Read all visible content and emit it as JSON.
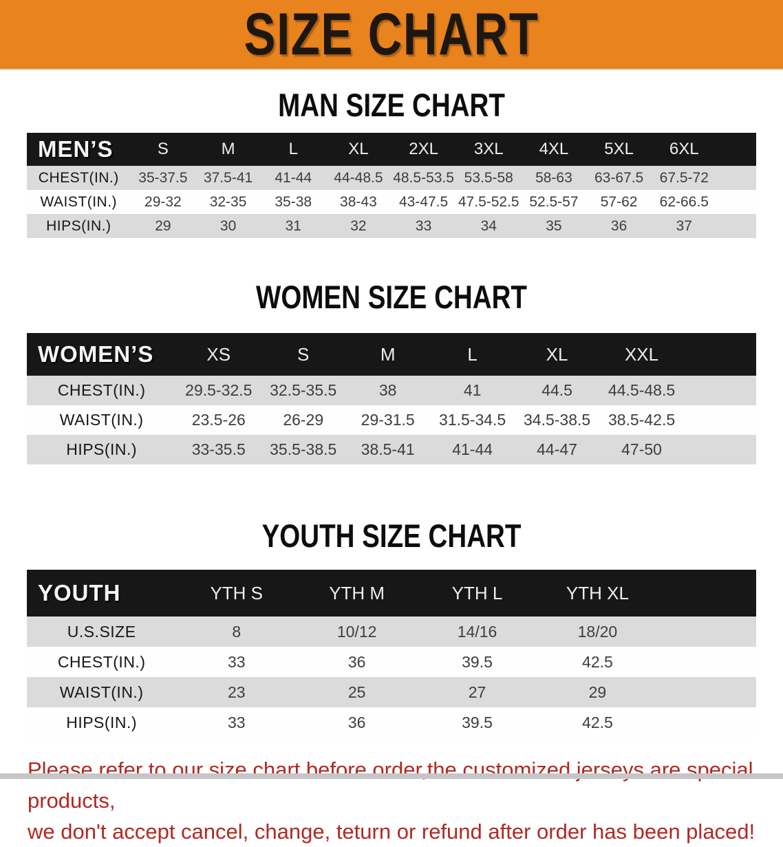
{
  "banner": {
    "title": "SIZE CHART",
    "bg_color": "#E8831E",
    "text_color": "#1d1712"
  },
  "tables": {
    "men": {
      "heading": "MAN SIZE CHART",
      "header_label": "MEN’S",
      "columns": [
        "S",
        "M",
        "L",
        "XL",
        "2XL",
        "3XL",
        "4XL",
        "5XL",
        "6XL"
      ],
      "rows": [
        {
          "label": "CHEST(IN.)",
          "values": [
            "35-37.5",
            "37.5-41",
            "41-44",
            "44-48.5",
            "48.5-53.5",
            "53.5-58",
            "58-63",
            "63-67.5",
            "67.5-72"
          ]
        },
        {
          "label": "WAIST(IN.)",
          "values": [
            "29-32",
            "32-35",
            "35-38",
            "38-43",
            "43-47.5",
            "47.5-52.5",
            "52.5-57",
            "57-62",
            "62-66.5"
          ]
        },
        {
          "label": "HIPS(IN.)",
          "values": [
            "29",
            "30",
            "31",
            "32",
            "33",
            "34",
            "35",
            "36",
            "37"
          ]
        }
      ]
    },
    "women": {
      "heading": "WOMEN SIZE CHART",
      "header_label": "WOMEN’S",
      "columns": [
        "XS",
        "S",
        "M",
        "L",
        "XL",
        "XXL"
      ],
      "rows": [
        {
          "label": "CHEST(IN.)",
          "values": [
            "29.5-32.5",
            "32.5-35.5",
            "38",
            "41",
            "44.5",
            "44.5-48.5"
          ]
        },
        {
          "label": "WAIST(IN.)",
          "values": [
            "23.5-26",
            "26-29",
            "29-31.5",
            "31.5-34.5",
            "34.5-38.5",
            "38.5-42.5"
          ]
        },
        {
          "label": "HIPS(IN.)",
          "values": [
            "33-35.5",
            "35.5-38.5",
            "38.5-41",
            "41-44",
            "44-47",
            "47-50"
          ]
        }
      ]
    },
    "youth": {
      "heading": "YOUTH SIZE CHART",
      "header_label": "YOUTH",
      "columns": [
        "YTH S",
        "YTH M",
        "YTH L",
        "YTH XL"
      ],
      "rows": [
        {
          "label": "U.S.SIZE",
          "values": [
            "8",
            "10/12",
            "14/16",
            "18/20"
          ]
        },
        {
          "label": "CHEST(IN.)",
          "values": [
            "33",
            "36",
            "39.5",
            "42.5"
          ]
        },
        {
          "label": "WAIST(IN.)",
          "values": [
            "23",
            "25",
            "27",
            "29"
          ]
        },
        {
          "label": "HIPS(IN.)",
          "values": [
            "33",
            "36",
            "39.5",
            "42.5"
          ]
        }
      ]
    }
  },
  "disclaimer": {
    "line1": "Please refer to our size chart before order,the customized jerseys are special products,",
    "line2": "we don't accept cancel, change, teturn or refund after order has been placed!",
    "text_color": "#B22822"
  },
  "colors": {
    "table_header_bar": "#171717",
    "row_gray": "#DBDBDB",
    "row_white": "#FEFEFE"
  }
}
